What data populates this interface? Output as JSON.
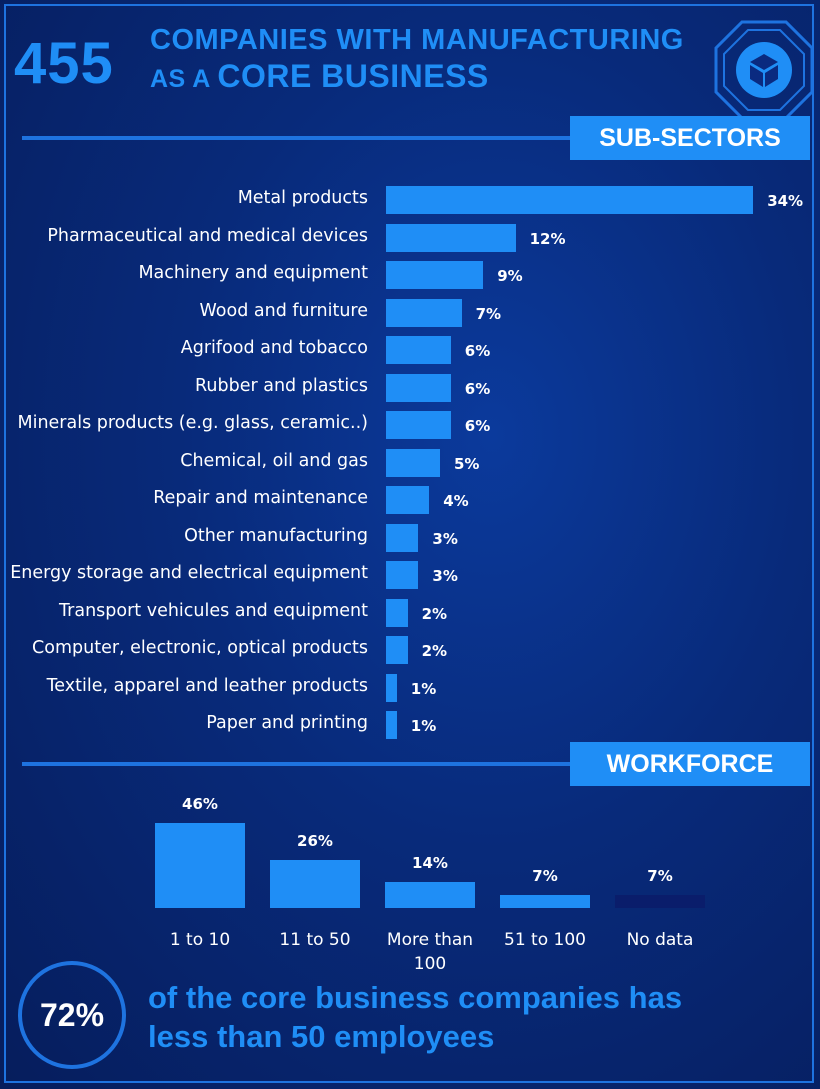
{
  "header": {
    "big_number": "455",
    "title_line1": "COMPANIES WITH MANUFACTURING",
    "title_line2_small": "AS A ",
    "title_line2_big": "CORE BUSINESS",
    "logo_icon": "cube-icon"
  },
  "sections": {
    "subsectors_tag": "SUB-SECTORS",
    "workforce_tag": "WORKFORCE"
  },
  "colors": {
    "accent": "#1f8ef6",
    "frame": "#1e73e0",
    "background": "#082a7a",
    "no_data_bar": "#0a1d6b"
  },
  "chart_data": [
    {
      "type": "bar",
      "orientation": "horizontal",
      "categories": [
        "Metal products",
        "Pharmaceutical and medical devices",
        "Machinery and equipment",
        "Wood and furniture",
        "Agrifood and tobacco",
        "Rubber and plastics",
        "Minerals products (e.g. glass, ceramic..)",
        "Chemical, oil and gas",
        "Repair and maintenance",
        "Other manufacturing",
        "Energy storage and electrical equipment",
        "Transport vehicules and equipment",
        "Computer, electronic, optical products",
        "Textile, apparel and leather products",
        "Paper and printing"
      ],
      "values": [
        34,
        12,
        9,
        7,
        6,
        6,
        6,
        5,
        4,
        3,
        3,
        2,
        2,
        1,
        1
      ],
      "value_labels": [
        "34%",
        "12%",
        "9%",
        "7%",
        "6%",
        "6%",
        "6%",
        "5%",
        "4%",
        "3%",
        "3%",
        "2%",
        "2%",
        "1%",
        "1%"
      ],
      "unit": "%"
    },
    {
      "type": "bar",
      "orientation": "vertical",
      "categories": [
        "1 to 10",
        "11 to 50",
        "More than 100",
        "51 to 100",
        "No data"
      ],
      "category_lines": [
        [
          "1 to 10"
        ],
        [
          "11 to 50"
        ],
        [
          "More than",
          "100"
        ],
        [
          "51 to 100"
        ],
        [
          "No data"
        ]
      ],
      "values": [
        46,
        26,
        14,
        7,
        7
      ],
      "value_labels": [
        "46%",
        "26%",
        "14%",
        "7%",
        "7%"
      ],
      "unit": "%"
    }
  ],
  "footer": {
    "circle_value": "72%",
    "line1": "of the core business companies has",
    "line2": "less than 50 employees"
  }
}
